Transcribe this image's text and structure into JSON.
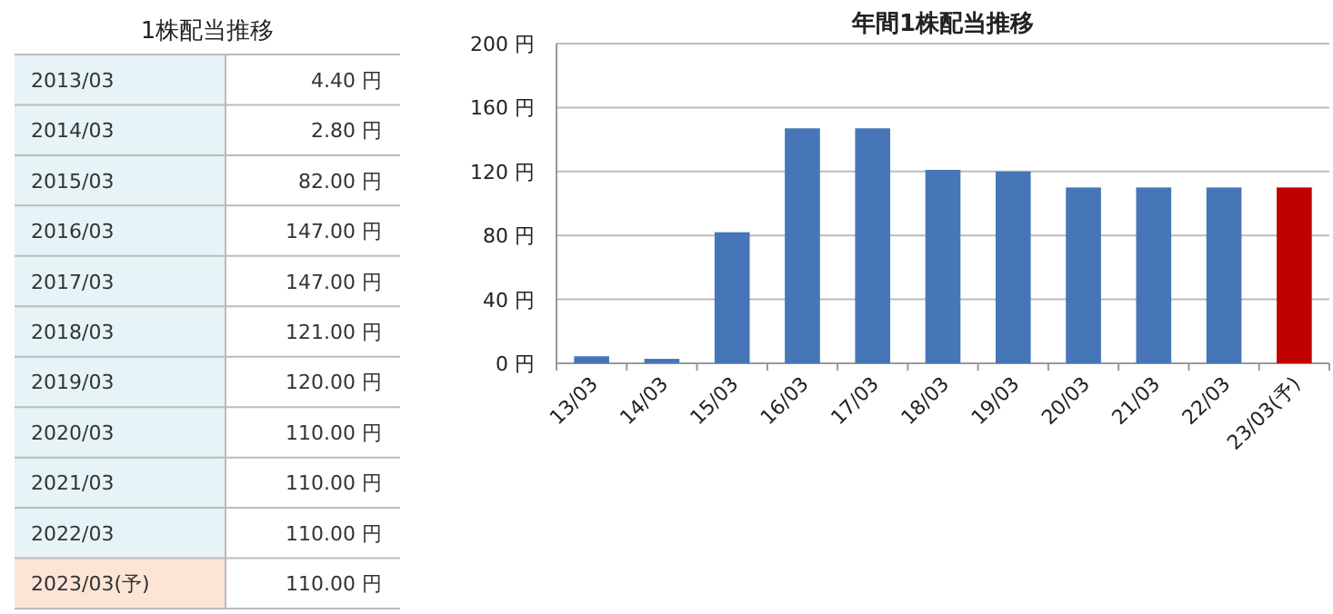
{
  "chart_data": [
    {
      "type": "other",
      "title": "1株配当推移",
      "categories": [
        "2013/03",
        "2014/03",
        "2015/03",
        "2016/03",
        "2017/03",
        "2018/03",
        "2019/03",
        "2020/03",
        "2021/03",
        "2022/03",
        "2023/03(予)"
      ],
      "value_labels": [
        "4.40 円",
        "2.80 円",
        "82.00 円",
        "147.00 円",
        "147.00 円",
        "121.00 円",
        "120.00 円",
        "110.00 円",
        "110.00 円",
        "110.00 円",
        "110.00 円"
      ],
      "colors": [
        "#e6f3f7",
        "#e6f3f7",
        "#e6f3f7",
        "#e6f3f7",
        "#e6f3f7",
        "#e6f3f7",
        "#e6f3f7",
        "#e6f3f7",
        "#e6f3f7",
        "#e6f3f7",
        "#fde5d5"
      ]
    },
    {
      "type": "bar",
      "title": "年間1株配当推移",
      "categories": [
        "13/03",
        "14/03",
        "15/03",
        "16/03",
        "17/03",
        "18/03",
        "19/03",
        "20/03",
        "21/03",
        "22/03",
        "23/03(予)"
      ],
      "values": [
        4.4,
        2.8,
        82,
        147,
        147,
        121,
        120,
        110,
        110,
        110,
        110
      ],
      "colors": [
        "#4676b8",
        "#4676b8",
        "#4676b8",
        "#4676b8",
        "#4676b8",
        "#4676b8",
        "#4676b8",
        "#4676b8",
        "#4676b8",
        "#4676b8",
        "#c00000"
      ],
      "ylim": [
        0,
        200
      ],
      "yticks": [
        {
          "value": 0,
          "label": "0 円"
        },
        {
          "value": 40,
          "label": "40 円"
        },
        {
          "value": 80,
          "label": "80 円"
        },
        {
          "value": 120,
          "label": "120 円"
        },
        {
          "value": 160,
          "label": "160 円"
        },
        {
          "value": 200,
          "label": "200 円"
        }
      ],
      "grid": "y"
    }
  ]
}
